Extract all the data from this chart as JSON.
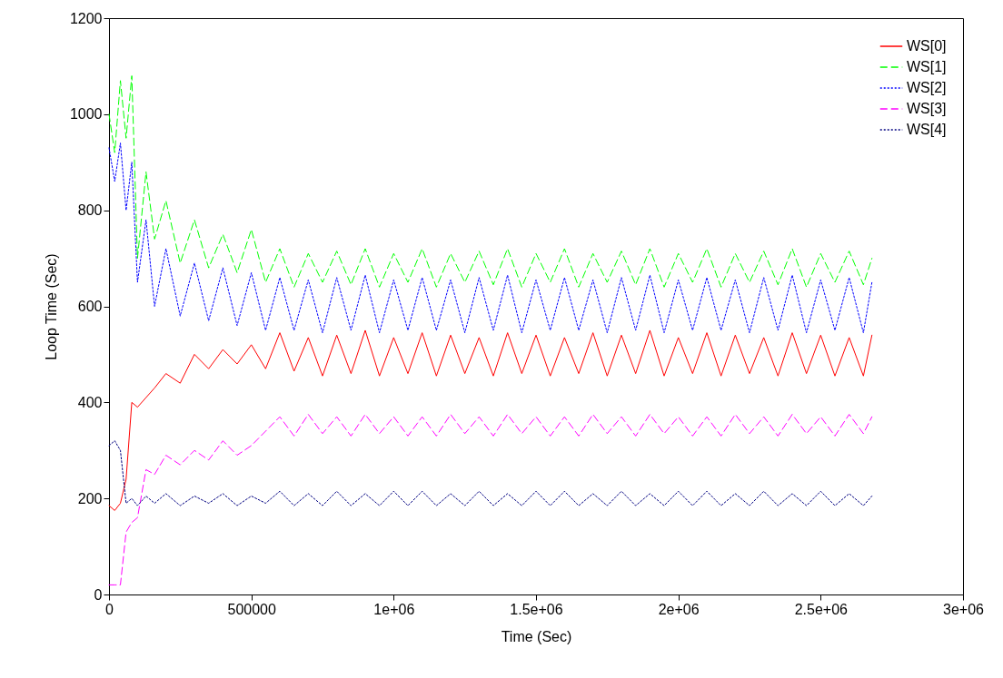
{
  "chart_data": {
    "type": "line",
    "xlabel": "Time (Sec)",
    "ylabel": "Loop Time (Sec)",
    "x": [
      0,
      20000,
      40000,
      60000,
      80000,
      100000,
      130000,
      160000,
      200000,
      250000,
      300000,
      350000,
      400000,
      450000,
      500000,
      550000,
      600000,
      650000,
      700000,
      750000,
      800000,
      850000,
      900000,
      950000,
      1000000,
      1050000,
      1100000,
      1150000,
      1200000,
      1250000,
      1300000,
      1350000,
      1400000,
      1450000,
      1500000,
      1550000,
      1600000,
      1650000,
      1700000,
      1750000,
      1800000,
      1850000,
      1900000,
      1950000,
      2000000,
      2050000,
      2100000,
      2150000,
      2200000,
      2250000,
      2300000,
      2350000,
      2400000,
      2450000,
      2500000,
      2550000,
      2600000,
      2650000,
      2680000
    ],
    "series": [
      {
        "name": "WS[0]",
        "color": "#ff0000",
        "line_style": "solid",
        "values": [
          185,
          175,
          190,
          240,
          400,
          390,
          410,
          430,
          460,
          440,
          500,
          470,
          510,
          480,
          520,
          470,
          545,
          465,
          535,
          455,
          540,
          460,
          550,
          455,
          535,
          460,
          545,
          455,
          540,
          460,
          535,
          455,
          545,
          460,
          540,
          455,
          535,
          460,
          545,
          455,
          540,
          460,
          550,
          455,
          535,
          460,
          545,
          455,
          540,
          460,
          535,
          455,
          545,
          460,
          540,
          455,
          535,
          455,
          540
        ]
      },
      {
        "name": "WS[1]",
        "color": "#00ff00",
        "line_style": "dashed",
        "values": [
          1000,
          920,
          1070,
          950,
          1080,
          700,
          880,
          740,
          820,
          690,
          780,
          680,
          750,
          670,
          760,
          650,
          720,
          640,
          710,
          650,
          715,
          645,
          720,
          640,
          710,
          650,
          720,
          640,
          710,
          650,
          715,
          645,
          720,
          640,
          710,
          650,
          720,
          640,
          710,
          650,
          715,
          645,
          720,
          640,
          710,
          650,
          720,
          640,
          710,
          650,
          715,
          645,
          720,
          640,
          710,
          650,
          715,
          645,
          700
        ]
      },
      {
        "name": "WS[2]",
        "color": "#0000ff",
        "line_style": "dotted",
        "values": [
          930,
          860,
          940,
          800,
          900,
          650,
          780,
          600,
          720,
          580,
          690,
          570,
          680,
          560,
          670,
          550,
          660,
          550,
          655,
          545,
          660,
          550,
          665,
          545,
          655,
          550,
          660,
          550,
          655,
          545,
          660,
          550,
          665,
          545,
          655,
          550,
          660,
          550,
          655,
          545,
          660,
          550,
          665,
          545,
          655,
          550,
          660,
          550,
          655,
          545,
          660,
          550,
          665,
          545,
          655,
          550,
          660,
          545,
          650
        ]
      },
      {
        "name": "WS[3]",
        "color": "#ff00ff",
        "line_style": "dashed",
        "values": [
          20,
          20,
          20,
          130,
          150,
          160,
          260,
          250,
          290,
          270,
          300,
          280,
          320,
          290,
          310,
          340,
          370,
          330,
          375,
          335,
          370,
          330,
          375,
          335,
          370,
          330,
          370,
          330,
          375,
          335,
          370,
          330,
          375,
          335,
          370,
          330,
          370,
          330,
          375,
          335,
          370,
          330,
          375,
          335,
          370,
          330,
          370,
          330,
          375,
          335,
          370,
          330,
          375,
          335,
          370,
          330,
          375,
          335,
          370
        ]
      },
      {
        "name": "WS[4]",
        "color": "#000080",
        "line_style": "dotted",
        "values": [
          310,
          320,
          300,
          190,
          200,
          185,
          205,
          190,
          210,
          185,
          205,
          190,
          210,
          185,
          205,
          190,
          215,
          185,
          210,
          185,
          215,
          185,
          210,
          185,
          215,
          185,
          215,
          185,
          210,
          185,
          215,
          185,
          210,
          185,
          215,
          185,
          215,
          185,
          210,
          185,
          215,
          185,
          210,
          185,
          215,
          185,
          215,
          185,
          210,
          185,
          215,
          185,
          210,
          185,
          215,
          185,
          210,
          185,
          205
        ]
      }
    ],
    "xlim": [
      0,
      3000000
    ],
    "ylim": [
      0,
      1200
    ],
    "xticks": [
      0,
      500000,
      {
        "value": 1000000,
        "label": "1e+06"
      },
      {
        "value": 1500000,
        "label": "1.5e+06"
      },
      {
        "value": 2000000,
        "label": "2e+06"
      },
      {
        "value": 2500000,
        "label": "2.5e+06"
      },
      {
        "value": 3000000,
        "label": "3e+06"
      }
    ],
    "yticks": [
      0,
      200,
      400,
      600,
      800,
      1000,
      1200
    ],
    "grid": false,
    "legend": "top right",
    "marker": "none"
  }
}
